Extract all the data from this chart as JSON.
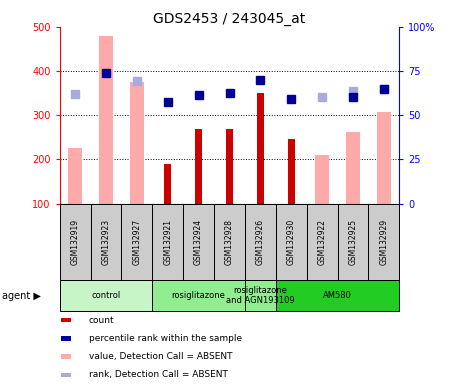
{
  "title": "GDS2453 / 243045_at",
  "samples": [
    "GSM132919",
    "GSM132923",
    "GSM132927",
    "GSM132921",
    "GSM132924",
    "GSM132928",
    "GSM132926",
    "GSM132930",
    "GSM132922",
    "GSM132925",
    "GSM132929"
  ],
  "count_values": [
    null,
    null,
    null,
    190,
    268,
    268,
    350,
    245,
    null,
    null,
    null
  ],
  "absent_value_bars": [
    225,
    480,
    375,
    null,
    null,
    null,
    null,
    null,
    210,
    262,
    308
  ],
  "percentile_rank": [
    null,
    395,
    null,
    330,
    345,
    350,
    380,
    337,
    null,
    342,
    360
  ],
  "absent_rank_bars": [
    348,
    null,
    378,
    null,
    null,
    null,
    null,
    null,
    342,
    355,
    360
  ],
  "ylim_left": [
    100,
    500
  ],
  "ylim_right": [
    0,
    100
  ],
  "yticks_left": [
    100,
    200,
    300,
    400,
    500
  ],
  "yticks_right": [
    0,
    25,
    50,
    75,
    100
  ],
  "agent_groups": [
    {
      "label": "control",
      "start": 0,
      "end": 3,
      "color": "#c8f5c8"
    },
    {
      "label": "rosiglitazone",
      "start": 3,
      "end": 6,
      "color": "#90ee90"
    },
    {
      "label": "rosiglitazone\nand AGN193109",
      "start": 6,
      "end": 7,
      "color": "#90ee90"
    },
    {
      "label": "AM580",
      "start": 7,
      "end": 11,
      "color": "#22cc22"
    }
  ],
  "count_color": "#cc0000",
  "absent_value_color": "#ffaaaa",
  "percentile_rank_color": "#000099",
  "absent_rank_color": "#aaaadd",
  "title_fontsize": 10,
  "sample_bg_color": "#cccccc",
  "plot_bg_color": "#ffffff"
}
